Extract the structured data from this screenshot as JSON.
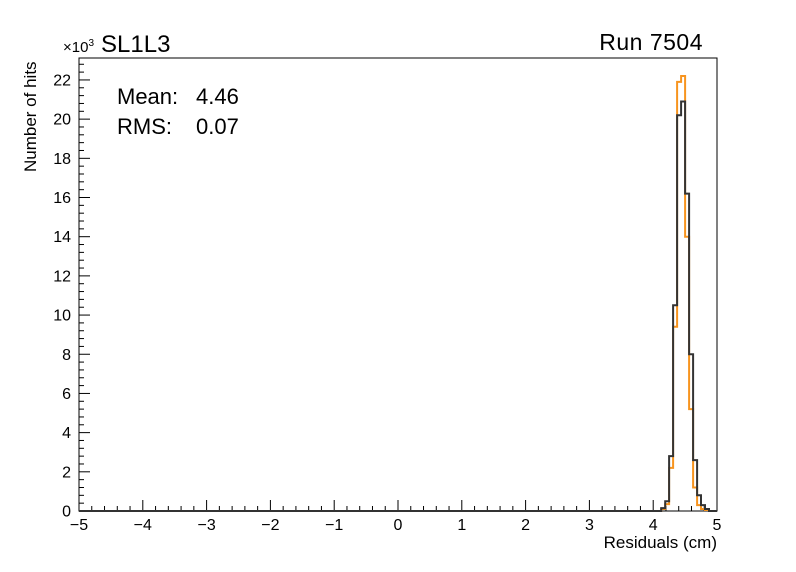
{
  "window": {
    "background": "#ffffff"
  },
  "colors": {
    "frame": "#000000",
    "text": "#000000",
    "hist_orange": "#F7941E",
    "hist_dark": "#333333"
  },
  "chart_data": {
    "type": "histogram-step",
    "title": "SL1L3",
    "corner_label": "Run 7504",
    "stats": [
      {
        "label": "Mean:",
        "value": "4.46"
      },
      {
        "label": "RMS:",
        "value": "0.07"
      }
    ],
    "x_axis": {
      "label": "Residuals (cm)",
      "min": -5,
      "max": 5,
      "tick_values": [
        -5,
        -4,
        -3,
        -2,
        -1,
        0,
        1,
        2,
        3,
        4,
        5
      ],
      "tick_labels": [
        "−5",
        "−4",
        "−3",
        "−2",
        "−1",
        "0",
        "1",
        "2",
        "3",
        "4",
        "5"
      ],
      "minor_step": 0.2
    },
    "y_axis": {
      "label": "Number of hits",
      "min": 0,
      "max": 23.12,
      "tick_values": [
        0,
        2,
        4,
        6,
        8,
        10,
        12,
        14,
        16,
        18,
        20,
        22
      ],
      "tick_labels": [
        "0",
        "2",
        "4",
        "6",
        "8",
        "10",
        "12",
        "14",
        "16",
        "18",
        "20",
        "22"
      ],
      "minor_step": 0.4,
      "multiplier_base": "×10",
      "multiplier_exp": "3"
    },
    "grid": false,
    "legend": null,
    "series": [
      {
        "name": "residuals-histogram",
        "color": "#F7941E",
        "line_width": 2,
        "bin_start": 4.125,
        "bin_width": 0.0625,
        "values_unit": "x1000 hits",
        "values": [
          0.1,
          0.35,
          2.2,
          9.4,
          21.9,
          22.2,
          14.0,
          5.2,
          1.2,
          0.3,
          0.1,
          0.05
        ]
      },
      {
        "name": "fit-overlay",
        "color": "#333333",
        "line_width": 2,
        "bin_start": 4.125,
        "bin_width": 0.0625,
        "values_unit": "x1000 hits",
        "values": [
          0.15,
          0.5,
          2.8,
          10.5,
          20.2,
          20.9,
          16.2,
          8.0,
          2.6,
          0.8,
          0.3,
          0.1
        ]
      }
    ]
  }
}
